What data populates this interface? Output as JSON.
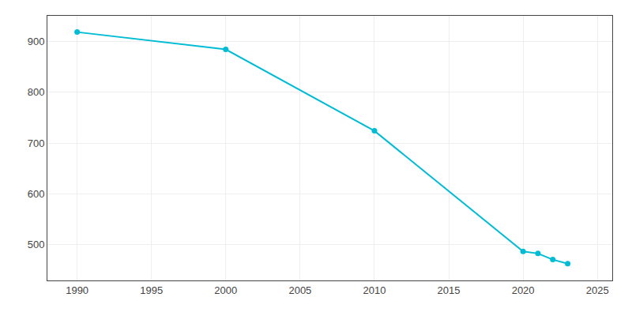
{
  "chart_data": {
    "type": "line",
    "x": [
      1990,
      2000,
      2010,
      2020,
      2021,
      2022,
      2023
    ],
    "values": [
      918,
      884,
      724,
      487,
      483,
      471,
      463
    ],
    "color": "#00BCD4",
    "marker": "circle",
    "line_style": "solid",
    "xlim": [
      1988,
      2026
    ],
    "ylim": [
      430,
      950
    ],
    "xticks": [
      1990,
      1995,
      2000,
      2005,
      2010,
      2015,
      2020,
      2025
    ],
    "yticks": [
      500,
      600,
      700,
      800,
      900
    ],
    "grid": true
  }
}
